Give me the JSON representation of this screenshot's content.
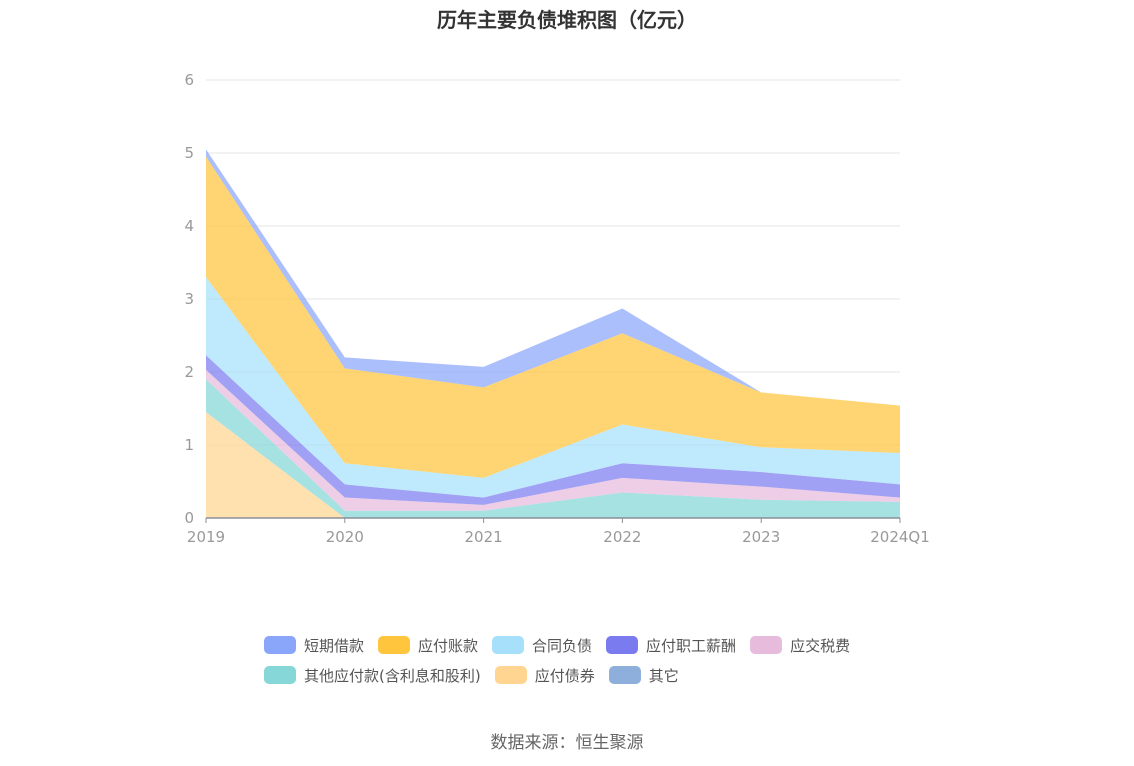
{
  "source_text": "数据来源：恒生聚源",
  "chart_data": {
    "type": "area",
    "stacked": true,
    "title": "历年主要负债堆积图（亿元）",
    "categories": [
      "2019",
      "2020",
      "2021",
      "2022",
      "2023",
      "2024Q1"
    ],
    "ylim": [
      0,
      6
    ],
    "yticks": [
      0,
      1,
      2,
      3,
      4,
      5,
      6
    ],
    "grid": true,
    "legend_position": "bottom",
    "series": [
      {
        "name": "应付债券",
        "color": "#ffd591",
        "values": [
          1.45,
          0.0,
          0.0,
          0.0,
          0.0,
          0.0
        ]
      },
      {
        "name": "其他应付款(含利息和股利)",
        "color": "#85d7d8",
        "values": [
          0.45,
          0.1,
          0.1,
          0.35,
          0.25,
          0.22
        ]
      },
      {
        "name": "应交税费",
        "color": "#e6bbdc",
        "values": [
          0.13,
          0.18,
          0.08,
          0.2,
          0.18,
          0.06
        ]
      },
      {
        "name": "应付职工薪酬",
        "color": "#7b7bf0",
        "values": [
          0.2,
          0.18,
          0.1,
          0.2,
          0.2,
          0.18
        ]
      },
      {
        "name": "合同负债",
        "color": "#a6e0fb",
        "values": [
          1.07,
          0.29,
          0.27,
          0.53,
          0.34,
          0.43
        ]
      },
      {
        "name": "应付账款",
        "color": "#ffc53d",
        "values": [
          1.65,
          1.3,
          1.24,
          1.25,
          0.75,
          0.65
        ]
      },
      {
        "name": "短期借款",
        "color": "#89a6fb",
        "values": [
          0.1,
          0.15,
          0.28,
          0.34,
          0.0,
          0.0
        ]
      },
      {
        "name": "其它",
        "color": "#8eafdb",
        "values": [
          0.0,
          0.0,
          0.0,
          0.0,
          0.0,
          0.0
        ]
      }
    ],
    "legend_order": [
      "短期借款",
      "应付账款",
      "合同负债",
      "应付职工薪酬",
      "应交税费",
      "其他应付款(含利息和股利)",
      "应付债券",
      "其它"
    ]
  }
}
